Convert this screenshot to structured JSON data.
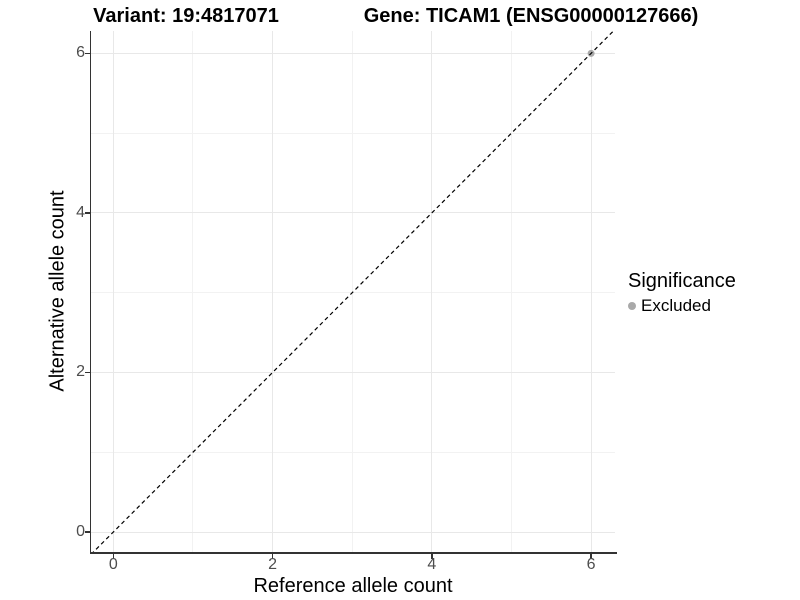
{
  "chart_data": {
    "type": "scatter",
    "titles": {
      "variant": "Variant: 19:4817071",
      "gene": "Gene: TICAM1 (ENSG00000127666)"
    },
    "xlabel": "Reference allele count",
    "ylabel": "Alternative allele count",
    "x_ticks": [
      0,
      2,
      4,
      6
    ],
    "x_minor_ticks": [
      1,
      3,
      5
    ],
    "y_ticks": [
      0,
      2,
      4,
      6
    ],
    "y_minor_ticks": [
      1,
      3,
      5
    ],
    "xlim": [
      -0.28,
      6.3
    ],
    "ylim": [
      -0.25,
      6.28
    ],
    "grid": true,
    "points": [
      {
        "x": 6,
        "y": 6,
        "significance": "Excluded"
      }
    ],
    "reference_line": {
      "style": "dashed",
      "slope": 1,
      "intercept": 0,
      "color": "#000000"
    },
    "legend": {
      "position": "right",
      "title": "Significance",
      "items": [
        {
          "label": "Excluded",
          "color": "#a9a9a9"
        }
      ]
    },
    "colors": {
      "point_excluded": "#a9a9a9",
      "grid_major": "#e8e8e8",
      "grid_minor": "#f2f2f2",
      "axis_line": "#333333",
      "tick_label": "#4d4d4d"
    }
  }
}
